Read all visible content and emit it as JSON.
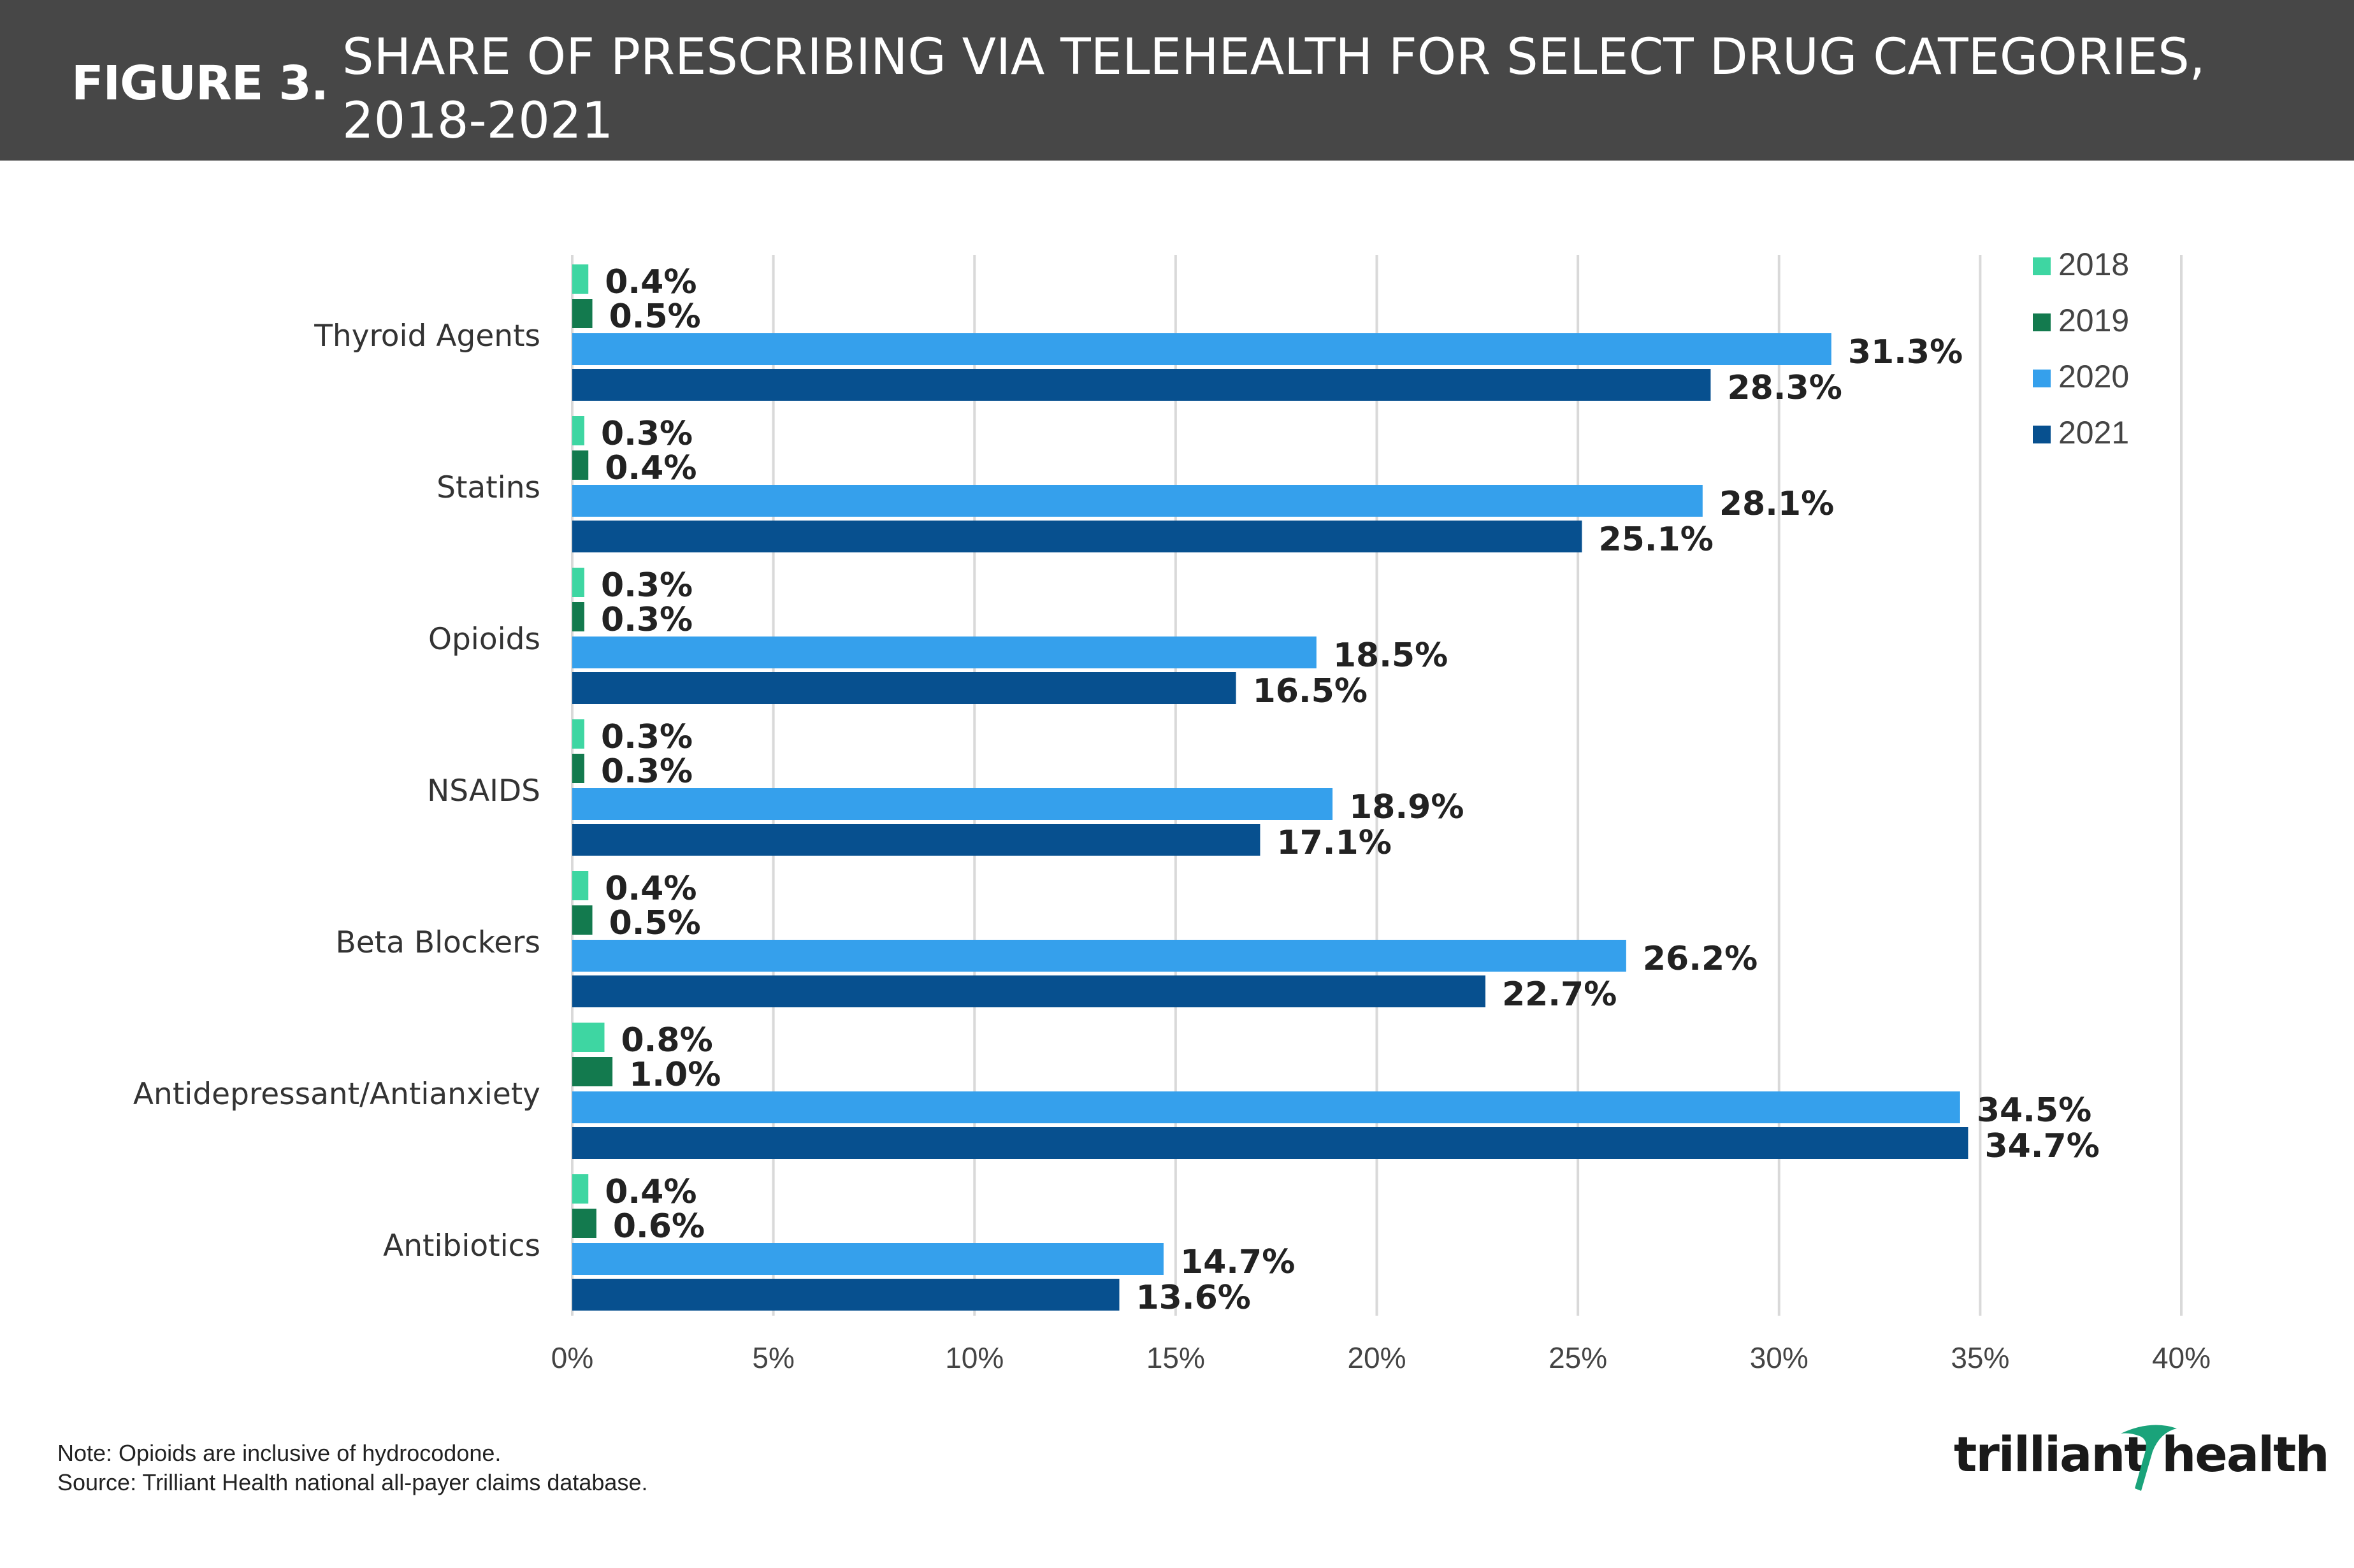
{
  "header": {
    "figure_label": "FIGURE 3.",
    "title_line1": "SHARE OF PRESCRIBING VIA TELEHEALTH FOR SELECT DRUG CATEGORIES,",
    "title_line2": "2018-2021"
  },
  "chart_data": {
    "type": "bar",
    "orientation": "horizontal",
    "categories": [
      "Thyroid Agents",
      "Statins",
      "Opioids",
      "NSAIDS",
      "Beta Blockers",
      "Antidepressant/Antianxiety",
      "Antibiotics"
    ],
    "series": [
      {
        "name": "2018",
        "color": "#3ed6a2",
        "values": [
          0.4,
          0.3,
          0.3,
          0.3,
          0.4,
          0.8,
          0.4
        ],
        "labels": [
          "0.4%",
          "0.3%",
          "0.3%",
          "0.3%",
          "0.4%",
          "0.8%",
          "0.4%"
        ]
      },
      {
        "name": "2019",
        "color": "#137a4e",
        "values": [
          0.5,
          0.4,
          0.3,
          0.3,
          0.5,
          1.0,
          0.6
        ],
        "labels": [
          "0.5%",
          "0.4%",
          "0.3%",
          "0.3%",
          "0.5%",
          "1.0%",
          "0.6%"
        ]
      },
      {
        "name": "2020",
        "color": "#35a0ec",
        "values": [
          31.3,
          28.1,
          18.5,
          18.9,
          26.2,
          34.5,
          14.7
        ],
        "labels": [
          "31.3%",
          "28.1%",
          "18.5%",
          "18.9%",
          "26.2%",
          "34.5%",
          "14.7%"
        ]
      },
      {
        "name": "2021",
        "color": "#07508f",
        "values": [
          28.3,
          25.1,
          16.5,
          17.1,
          22.7,
          34.7,
          13.6
        ],
        "labels": [
          "28.3%",
          "25.1%",
          "16.5%",
          "17.1%",
          "22.7%",
          "34.7%",
          "13.6%"
        ]
      }
    ],
    "xlim": [
      0,
      40
    ],
    "xticks": [
      0,
      5,
      10,
      15,
      20,
      25,
      30,
      35,
      40
    ],
    "xtick_labels": [
      "0%",
      "5%",
      "10%",
      "15%",
      "20%",
      "25%",
      "30%",
      "35%",
      "40%"
    ],
    "grid": true,
    "legend_position": "top-right"
  },
  "footer": {
    "note": "Note: Opioids are inclusive of hydrocodone.",
    "source": "Source: Trilliant Health national all-payer claims database.",
    "logo_text": "trilliant health"
  }
}
